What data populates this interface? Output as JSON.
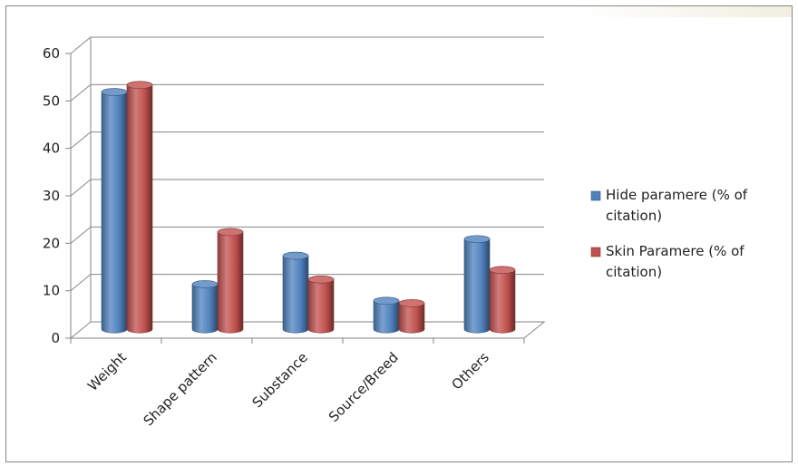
{
  "chart_data": {
    "type": "bar",
    "title": "",
    "xlabel": "",
    "ylabel": "",
    "ylim": [
      0,
      60
    ],
    "yticks": [
      0,
      10,
      20,
      30,
      40,
      50,
      60
    ],
    "categories": [
      "Weight",
      "Shape pattern",
      "Substance",
      "Source/Breed",
      "Others"
    ],
    "series": [
      {
        "name": "Hide paramere (% of citation)",
        "name_lines": [
          "Hide paramere (% of",
          "citation)"
        ],
        "color": "#4f81bd",
        "values": [
          50,
          9.5,
          15.5,
          6,
          19
        ]
      },
      {
        "name": "Skin Paramere  (% of citation)",
        "name_lines": [
          "Skin Paramere  (% of",
          "citation)"
        ],
        "color": "#c0504d",
        "values": [
          51.5,
          20.5,
          10.5,
          5.5,
          12.5
        ]
      }
    ],
    "grid": true,
    "legend_position": "right",
    "style": "3d-cylinder"
  }
}
